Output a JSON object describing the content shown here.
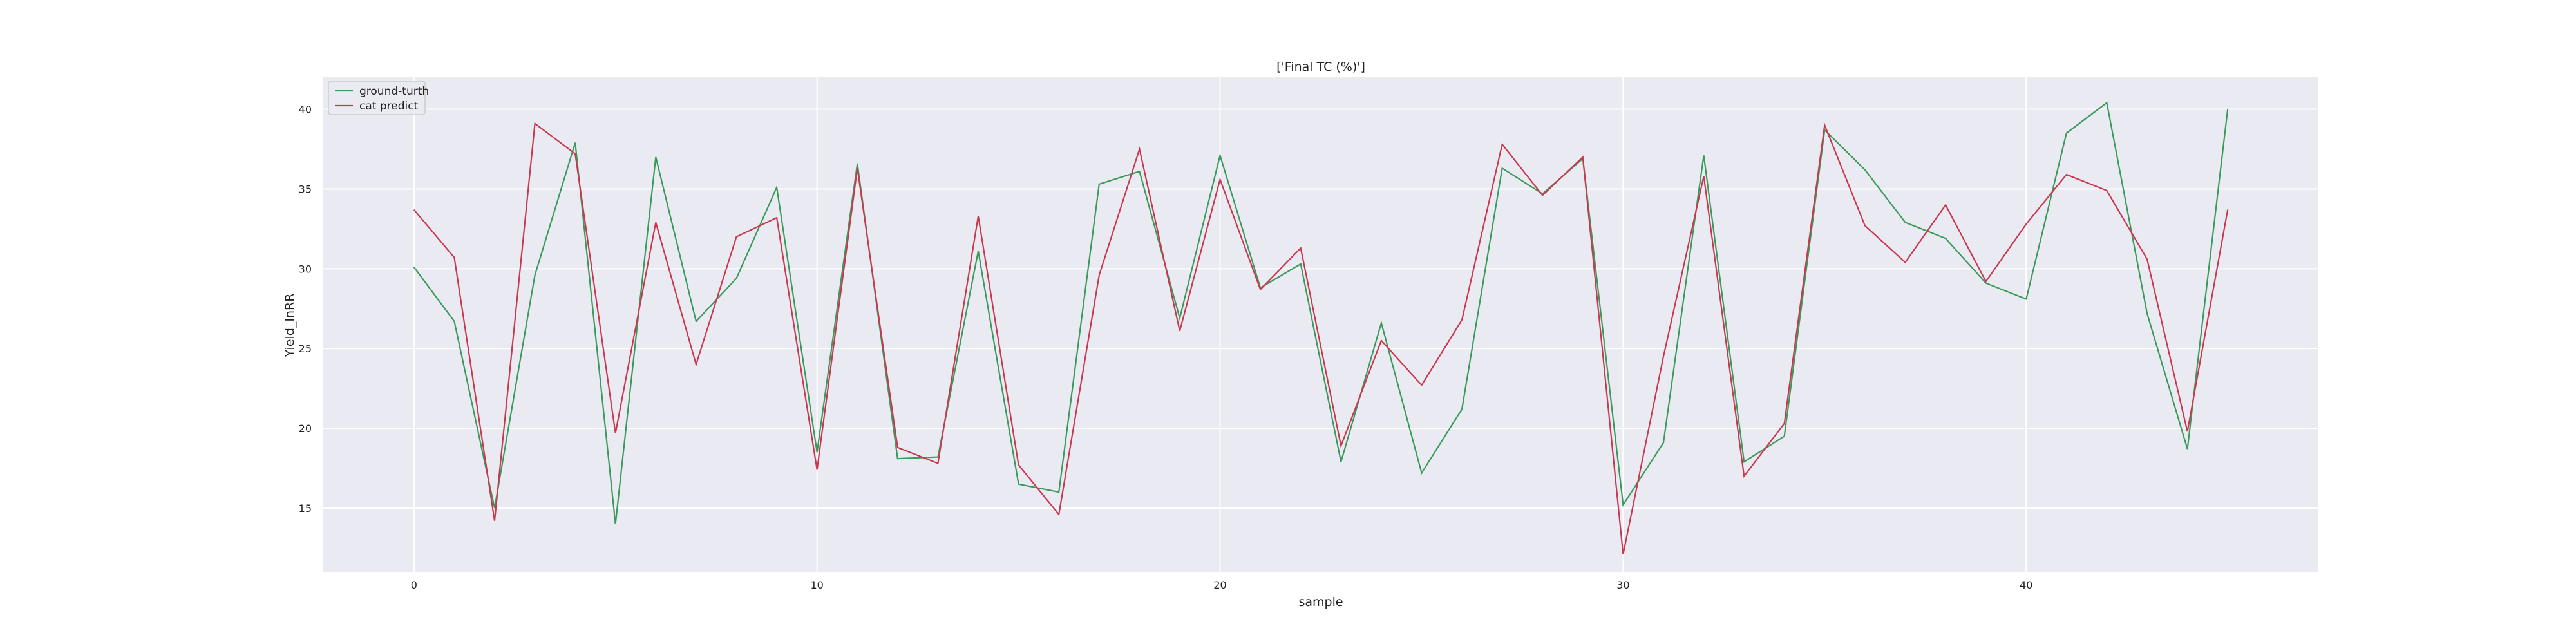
{
  "chart_data": {
    "type": "line",
    "title": "['Final TC (%)']",
    "xlabel": "sample",
    "ylabel": "Yield_InRR",
    "xlim": [
      -2.25,
      47.25
    ],
    "ylim": [
      11,
      42
    ],
    "xticks": [
      0,
      10,
      20,
      30,
      40
    ],
    "yticks": [
      15,
      20,
      25,
      30,
      35,
      40
    ],
    "grid": true,
    "legend_position": "top-left",
    "x": [
      0,
      1,
      2,
      3,
      4,
      5,
      6,
      7,
      8,
      9,
      10,
      11,
      12,
      13,
      14,
      15,
      16,
      17,
      18,
      19,
      20,
      21,
      22,
      23,
      24,
      25,
      26,
      27,
      28,
      29,
      30,
      31,
      32,
      33,
      34,
      35,
      36,
      37,
      38,
      39,
      40,
      41,
      42,
      43,
      44,
      45
    ],
    "series": [
      {
        "name": "ground-turth",
        "color": "#3a9a5b",
        "values": [
          30.1,
          26.7,
          15.0,
          29.6,
          37.9,
          14.0,
          37.0,
          26.7,
          29.4,
          35.1,
          18.5,
          36.6,
          18.1,
          18.2,
          31.1,
          16.5,
          16.0,
          35.3,
          36.1,
          26.9,
          37.1,
          28.8,
          30.3,
          17.9,
          26.6,
          17.2,
          21.2,
          36.3,
          34.7,
          36.9,
          15.2,
          19.1,
          37.1,
          17.9,
          19.5,
          38.7,
          36.2,
          32.9,
          31.9,
          29.1,
          28.1,
          38.5,
          40.4,
          27.2,
          18.7,
          40.0
        ]
      },
      {
        "name": "cat predict",
        "color": "#c8384f",
        "values": [
          33.7,
          30.7,
          14.2,
          39.1,
          37.2,
          19.7,
          32.9,
          24.0,
          32.0,
          33.2,
          17.4,
          36.3,
          18.8,
          17.8,
          33.3,
          17.7,
          14.6,
          29.6,
          37.5,
          26.1,
          35.6,
          28.7,
          31.3,
          18.9,
          25.5,
          22.7,
          26.8,
          37.8,
          34.6,
          37.0,
          12.1,
          24.5,
          35.8,
          17.0,
          20.3,
          39.0,
          32.7,
          30.4,
          34.0,
          29.2,
          32.8,
          35.9,
          34.9,
          30.6,
          19.8,
          33.7
        ]
      }
    ]
  }
}
